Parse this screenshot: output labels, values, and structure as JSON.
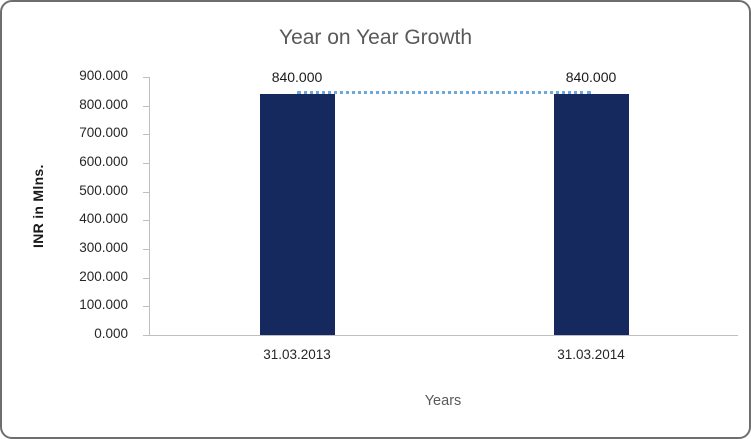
{
  "chart_data": {
    "type": "bar",
    "title": "Year on Year Growth",
    "categories": [
      "31.03.2013",
      "31.03.2014"
    ],
    "values": [
      840,
      840
    ],
    "value_labels": [
      "840.000",
      "840.000"
    ],
    "xlabel": "Years",
    "ylabel": "INR in Mlns.",
    "ylim": [
      0,
      900
    ],
    "ytick_step": 100,
    "ytick_labels": [
      "0.000",
      "100.000",
      "200.000",
      "300.000",
      "400.000",
      "500.000",
      "600.000",
      "700.000",
      "800.000",
      "900.000"
    ],
    "grid": false,
    "legend": "none",
    "trendline": {
      "type": "linear",
      "style": "dotted",
      "y_values": [
        840,
        840
      ],
      "color": "#6fa8dc"
    },
    "colors": {
      "bar": "#15295e",
      "title": "#595959",
      "axis_line": "#bfbfbf",
      "label_text": "#1a1a1a"
    }
  }
}
